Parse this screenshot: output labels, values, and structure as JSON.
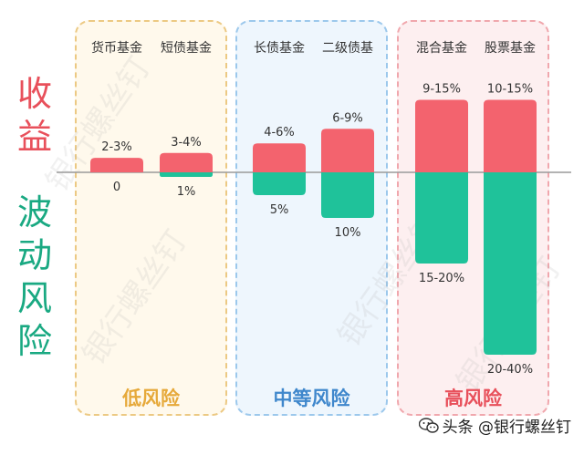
{
  "chart_data": {
    "type": "bar",
    "categories": [
      "货币基金",
      "短债基金",
      "长债基金",
      "二级债基",
      "混合基金",
      "股票基金"
    ],
    "return_labels": [
      "2-3%",
      "3-4%",
      "4-6%",
      "6-9%",
      "9-15%",
      "10-15%"
    ],
    "return_values": [
      3,
      4,
      6,
      9,
      15,
      15
    ],
    "volatility_labels": [
      "0",
      "1%",
      "5%",
      "10%",
      "15-20%",
      "20-40%"
    ],
    "volatility_values": [
      0,
      1,
      5,
      10,
      20,
      40
    ],
    "ylabel_top": "收益",
    "ylabel_bottom": "波动风险",
    "groups": [
      {
        "label": "低风险",
        "categories": [
          "货币基金",
          "短债基金"
        ],
        "color": "#e6b25a"
      },
      {
        "label": "中等风险",
        "categories": [
          "长债基金",
          "二级债基"
        ],
        "color": "#4f94d4"
      },
      {
        "label": "高风险",
        "categories": [
          "混合基金",
          "股票基金"
        ],
        "color": "#e8505b"
      }
    ],
    "colors": {
      "return": "#f3636e",
      "volatility": "#1fc29a",
      "axis": "#9a9a9a"
    }
  },
  "watermark_text": "银行螺丝钉",
  "footer": {
    "icon": "wechat-icon",
    "text": "头条 @银行螺丝钉"
  }
}
